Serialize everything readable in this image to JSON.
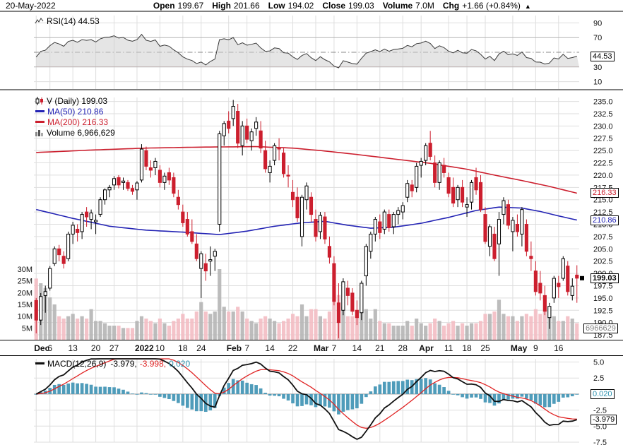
{
  "header": {
    "date": "20-May-2022",
    "open_l": "Open",
    "open_v": "199.67",
    "high_l": "High",
    "high_v": "201.66",
    "low_l": "Low",
    "low_v": "194.02",
    "close_l": "Close",
    "close_v": "199.03",
    "vol_l": "Volume",
    "vol_v": "7.0M",
    "chg_l": "Chg",
    "chg_v": "+1.66 (+0.84%)",
    "arrow": "▲"
  },
  "rsi": {
    "legend": "RSI(14) 44.53"
  },
  "price": {
    "legend": "V (Daily) 199.03",
    "ma50": "MA(50) 210.86",
    "ma200": "MA(200) 216.33",
    "volume": "Volume 6,966,629"
  },
  "macd": {
    "name": "MACD(12,26,9)",
    "v1": "-3.979,",
    "v2": "-3.998,",
    "v3": "0.020"
  },
  "boxes": {
    "rsi": "44.53",
    "ma200": "216.33",
    "ma50": "210.86",
    "price": "199.03",
    "volume": "6966629",
    "hist": "0.020",
    "macd": "-3.979"
  },
  "colors": {
    "up": "#000000",
    "up_fill": "#ffffff",
    "down": "#cc1f2e",
    "vol_up": "#b5b5b5",
    "vol_down": "#f3bcc3",
    "ma50": "#2323b4",
    "ma200": "#cc1f2e",
    "rsi_line": "#3a3a3a",
    "rsi_fill": "#cfcfcf",
    "rsi_oversold_fill": "#a85555",
    "macd_hist": "#4f9cba",
    "macd_line": "#111111",
    "signal_line": "#e02424",
    "hist_text": "#2e93b0",
    "vol_text": "#828282",
    "grid": "#dedede"
  },
  "chart_data": {
    "type": "candlestick",
    "symbol": "V",
    "timeframe": "Daily",
    "indicators": [
      "RSI(14)",
      "MA(50)",
      "MA(200)",
      "Volume",
      "MACD(12,26,9)"
    ],
    "price_axis": {
      "min": 187.5,
      "max": 235.0,
      "step": 2.5
    },
    "volume_axis_m": [
      30,
      25,
      20,
      15,
      10,
      5
    ],
    "rsi_axis": [
      90,
      70,
      30,
      10
    ],
    "rsi_levels": {
      "overbought": 70,
      "oversold": 30,
      "mid": 50
    },
    "macd_grid": [
      5,
      2.5,
      0,
      -2.5,
      -5,
      -7.5
    ],
    "macd_axis": [
      5,
      2.5,
      -2.5,
      -5,
      -7.5
    ],
    "last": {
      "price": 199.03,
      "ma50": 210.86,
      "ma200": 216.33,
      "rsi": 44.53,
      "macd": -3.979,
      "signal": -3.998,
      "hist": 0.02,
      "volume_m": 7.0
    },
    "ticks": [
      [
        0,
        "Dec",
        true
      ],
      [
        3,
        "6",
        false
      ],
      [
        8,
        "13",
        false
      ],
      [
        13,
        "20",
        false
      ],
      [
        17,
        "27",
        false
      ],
      [
        22,
        "2022",
        true
      ],
      [
        27,
        "10",
        false
      ],
      [
        32,
        "18",
        false
      ],
      [
        36,
        "24",
        false
      ],
      [
        42,
        "Feb",
        true
      ],
      [
        46,
        "7",
        false
      ],
      [
        51,
        "14",
        false
      ],
      [
        56,
        "22",
        false
      ],
      [
        61,
        "Mar",
        true
      ],
      [
        65,
        "7",
        false
      ],
      [
        70,
        "14",
        false
      ],
      [
        75,
        "21",
        false
      ],
      [
        80,
        "28",
        false
      ],
      [
        84,
        "Apr",
        true
      ],
      [
        90,
        "11",
        false
      ],
      [
        94,
        "18",
        false
      ],
      [
        98,
        "25",
        false
      ],
      [
        104,
        "May",
        true
      ],
      [
        109,
        "9",
        false
      ],
      [
        114,
        "16",
        false
      ]
    ],
    "ma50_points": [
      [
        0,
        213.0
      ],
      [
        8,
        211.2
      ],
      [
        16,
        209.6
      ],
      [
        24,
        208.8
      ],
      [
        32,
        208.4
      ],
      [
        40,
        207.9
      ],
      [
        46,
        208.6
      ],
      [
        52,
        209.6
      ],
      [
        58,
        210.3
      ],
      [
        63,
        210.6
      ],
      [
        68,
        209.8
      ],
      [
        73,
        209.2
      ],
      [
        78,
        209.4
      ],
      [
        84,
        210.2
      ],
      [
        90,
        211.4
      ],
      [
        96,
        212.8
      ],
      [
        101,
        213.5
      ],
      [
        106,
        213.3
      ],
      [
        110,
        212.6
      ],
      [
        114,
        211.7
      ],
      [
        118,
        210.86
      ]
    ],
    "ma200_points": [
      [
        0,
        224.6
      ],
      [
        12,
        225.1
      ],
      [
        24,
        225.5
      ],
      [
        36,
        225.7
      ],
      [
        48,
        225.8
      ],
      [
        56,
        225.5
      ],
      [
        62,
        225.0
      ],
      [
        70,
        224.2
      ],
      [
        78,
        223.3
      ],
      [
        86,
        222.4
      ],
      [
        94,
        221.2
      ],
      [
        100,
        220.0
      ],
      [
        106,
        218.9
      ],
      [
        112,
        217.7
      ],
      [
        118,
        216.33
      ]
    ],
    "ohlc": [
      [
        194.5,
        195.0,
        187.8,
        190.5
      ],
      [
        190.5,
        196.0,
        189.5,
        195.3
      ],
      [
        195.5,
        197.5,
        192.0,
        196.3
      ],
      [
        197.0,
        201.5,
        196.5,
        201.0
      ],
      [
        202.0,
        205.5,
        201.5,
        205.0
      ],
      [
        205.0,
        205.8,
        202.5,
        203.8
      ],
      [
        203.5,
        204.5,
        201.0,
        202.0
      ],
      [
        203.0,
        208.5,
        202.5,
        208.0
      ],
      [
        208.0,
        210.5,
        206.0,
        209.8
      ],
      [
        209.0,
        210.0,
        206.5,
        208.3
      ],
      [
        208.5,
        212.5,
        207.0,
        212.0
      ],
      [
        212.5,
        213.5,
        209.5,
        211.5
      ],
      [
        211.0,
        213.0,
        209.0,
        212.3
      ],
      [
        210.5,
        212.0,
        208.0,
        210.8
      ],
      [
        212.0,
        215.5,
        211.5,
        215.0
      ],
      [
        215.0,
        217.3,
        214.0,
        217.0
      ],
      [
        217.0,
        218.0,
        215.5,
        217.5
      ],
      [
        218.0,
        219.8,
        217.0,
        219.3
      ],
      [
        219.5,
        220.0,
        217.3,
        218.0
      ],
      [
        218.5,
        219.5,
        217.0,
        218.8
      ],
      [
        218.5,
        219.0,
        216.8,
        217.3
      ],
      [
        217.3,
        218.0,
        216.0,
        216.7
      ],
      [
        217.0,
        218.8,
        215.0,
        218.4
      ],
      [
        219.0,
        226.3,
        218.5,
        225.3
      ],
      [
        225.0,
        225.8,
        221.0,
        221.8
      ],
      [
        221.5,
        223.0,
        219.5,
        221.0
      ],
      [
        221.5,
        223.5,
        220.0,
        222.8
      ],
      [
        221.0,
        222.0,
        217.5,
        218.5
      ],
      [
        218.5,
        220.5,
        217.0,
        219.8
      ],
      [
        220.5,
        221.5,
        218.0,
        219.0
      ],
      [
        219.5,
        220.5,
        215.5,
        216.3
      ],
      [
        215.5,
        217.0,
        213.0,
        214.0
      ],
      [
        212.5,
        214.0,
        209.5,
        210.3
      ],
      [
        211.0,
        212.5,
        207.5,
        208.0
      ],
      [
        208.5,
        211.0,
        206.0,
        206.5
      ],
      [
        206.0,
        208.0,
        202.5,
        203.0
      ],
      [
        201.0,
        204.5,
        195.0,
        204.0
      ],
      [
        202.0,
        204.0,
        198.5,
        200.5
      ],
      [
        202.5,
        205.5,
        199.5,
        202.8
      ],
      [
        203.5,
        205.0,
        200.5,
        204.5
      ],
      [
        210.0,
        229.0,
        208.5,
        228.4
      ],
      [
        228.0,
        231.0,
        226.0,
        230.5
      ],
      [
        231.0,
        233.0,
        228.5,
        229.5
      ],
      [
        231.5,
        235.3,
        230.0,
        234.0
      ],
      [
        233.0,
        234.5,
        225.5,
        226.5
      ],
      [
        226.0,
        231.0,
        224.0,
        230.0
      ],
      [
        230.0,
        231.5,
        226.5,
        227.3
      ],
      [
        227.0,
        229.5,
        225.0,
        228.8
      ],
      [
        229.5,
        231.8,
        228.0,
        230.8
      ],
      [
        229.0,
        231.0,
        224.5,
        225.5
      ],
      [
        225.0,
        227.0,
        220.5,
        221.3
      ],
      [
        220.5,
        223.0,
        218.5,
        221.8
      ],
      [
        223.0,
        226.5,
        222.0,
        226.0
      ],
      [
        225.5,
        227.5,
        223.0,
        225.3
      ],
      [
        224.5,
        225.5,
        219.5,
        220.3
      ],
      [
        220.0,
        222.0,
        217.5,
        219.8
      ],
      [
        216.5,
        219.0,
        213.5,
        215.0
      ],
      [
        215.5,
        217.5,
        210.5,
        211.3
      ],
      [
        207.5,
        216.0,
        205.5,
        215.5
      ],
      [
        215.0,
        218.5,
        213.0,
        217.8
      ],
      [
        215.5,
        216.5,
        210.5,
        212.0
      ],
      [
        211.0,
        213.0,
        206.5,
        207.5
      ],
      [
        208.5,
        212.5,
        207.0,
        211.8
      ],
      [
        211.5,
        212.5,
        206.0,
        207.0
      ],
      [
        205.5,
        207.5,
        202.0,
        203.3
      ],
      [
        202.0,
        203.5,
        193.5,
        194.3
      ],
      [
        194.0,
        198.0,
        186.8,
        190.0
      ],
      [
        192.5,
        199.0,
        191.5,
        198.3
      ],
      [
        197.0,
        198.5,
        193.5,
        195.5
      ],
      [
        196.0,
        197.0,
        191.5,
        192.3
      ],
      [
        192.5,
        194.5,
        189.5,
        191.0
      ],
      [
        192.0,
        198.5,
        190.5,
        198.0
      ],
      [
        199.5,
        206.0,
        197.5,
        205.5
      ],
      [
        204.5,
        208.5,
        203.0,
        208.0
      ],
      [
        208.0,
        211.5,
        206.5,
        211.0
      ],
      [
        210.5,
        212.0,
        207.0,
        208.3
      ],
      [
        209.0,
        213.0,
        208.0,
        212.5
      ],
      [
        212.0,
        213.0,
        208.5,
        209.3
      ],
      [
        209.5,
        212.5,
        208.0,
        212.0
      ],
      [
        212.0,
        213.5,
        210.0,
        212.8
      ],
      [
        212.5,
        214.5,
        211.0,
        213.8
      ],
      [
        215.5,
        219.0,
        214.5,
        218.3
      ],
      [
        218.0,
        219.0,
        215.5,
        216.8
      ],
      [
        217.5,
        222.5,
        216.5,
        221.8
      ],
      [
        222.0,
        223.5,
        219.5,
        222.8
      ],
      [
        223.0,
        226.5,
        222.0,
        226.0
      ],
      [
        226.5,
        229.0,
        223.0,
        223.8
      ],
      [
        222.5,
        224.0,
        217.5,
        218.5
      ],
      [
        218.5,
        223.0,
        217.0,
        222.5
      ],
      [
        222.0,
        223.5,
        219.5,
        220.5
      ],
      [
        219.5,
        220.5,
        215.5,
        216.3
      ],
      [
        217.5,
        219.5,
        213.5,
        214.3
      ],
      [
        215.0,
        218.0,
        213.5,
        217.5
      ],
      [
        217.5,
        219.0,
        213.5,
        214.5
      ],
      [
        213.5,
        215.5,
        211.5,
        214.0
      ],
      [
        214.5,
        219.0,
        213.0,
        218.5
      ],
      [
        219.5,
        221.5,
        216.0,
        217.0
      ],
      [
        218.5,
        220.0,
        212.5,
        213.0
      ],
      [
        212.0,
        213.5,
        206.0,
        206.5
      ],
      [
        205.5,
        210.0,
        203.5,
        209.5
      ],
      [
        208.0,
        209.5,
        202.5,
        203.0
      ],
      [
        206.0,
        212.5,
        199.5,
        211.0
      ],
      [
        212.0,
        215.5,
        210.0,
        214.8
      ],
      [
        214.0,
        215.0,
        209.0,
        209.8
      ],
      [
        208.5,
        211.5,
        204.5,
        210.8
      ],
      [
        210.0,
        212.0,
        207.5,
        208.5
      ],
      [
        208.0,
        213.5,
        205.5,
        213.0
      ],
      [
        210.0,
        211.0,
        203.5,
        204.5
      ],
      [
        203.5,
        206.5,
        200.5,
        203.0
      ],
      [
        200.5,
        202.5,
        195.5,
        196.3
      ],
      [
        198.0,
        200.5,
        194.5,
        196.0
      ],
      [
        195.5,
        197.5,
        191.5,
        192.3
      ],
      [
        191.0,
        194.0,
        188.7,
        193.3
      ],
      [
        195.0,
        199.5,
        194.0,
        199.0
      ],
      [
        198.0,
        199.5,
        195.0,
        197.3
      ],
      [
        199.0,
        203.5,
        198.5,
        203.0
      ],
      [
        201.5,
        202.5,
        195.5,
        196.3
      ],
      [
        195.5,
        199.0,
        194.5,
        197.4
      ],
      [
        199.67,
        201.66,
        194.02,
        199.03
      ]
    ],
    "volume_m": [
      26,
      24,
      22,
      18,
      15,
      10,
      9,
      10,
      11,
      9,
      10,
      9,
      13,
      8,
      8,
      7,
      6,
      6,
      6,
      5,
      5,
      5,
      8,
      10,
      9,
      8,
      7,
      9,
      7,
      6,
      8,
      9,
      11,
      9,
      9,
      12,
      16,
      12,
      11,
      12,
      30,
      14,
      12,
      12,
      14,
      12,
      9,
      8,
      7,
      9,
      10,
      9,
      8,
      7,
      8,
      9,
      11,
      10,
      15,
      10,
      13,
      13,
      10,
      9,
      12,
      17,
      19,
      14,
      10,
      10,
      12,
      12,
      13,
      9,
      13,
      8,
      7,
      7,
      6,
      6,
      6,
      8,
      6,
      9,
      7,
      6,
      7,
      9,
      8,
      6,
      7,
      8,
      6,
      7,
      6,
      7,
      7,
      8,
      11,
      11,
      12,
      17,
      11,
      10,
      10,
      8,
      10,
      11,
      10,
      13,
      11,
      12,
      14,
      10,
      8,
      8,
      10,
      9,
      7
    ]
  }
}
